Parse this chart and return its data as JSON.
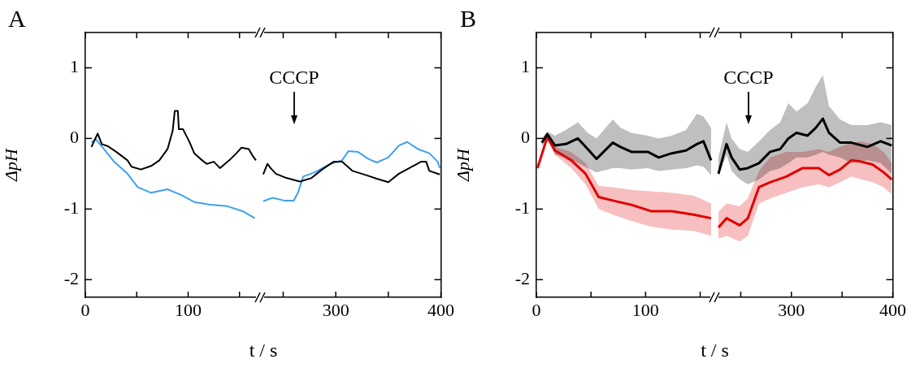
{
  "chart_data": [
    {
      "type": "line",
      "title": "A",
      "ylabel": "ΔpH",
      "xlabel": "t / s",
      "xlim": [
        0,
        170
      ],
      "xticks": [
        0,
        {
          "value": 50,
          "label": null
        },
        100,
        {
          "value": 150,
          "label": null
        }
      ],
      "ylim": [
        -2.25,
        1.5
      ],
      "yticks": [
        -2,
        -1,
        0,
        1
      ],
      "series": [
        {
          "color": "#000000",
          "x": [
            6,
            12,
            16,
            22,
            30,
            41,
            45,
            54,
            64,
            72,
            80,
            85,
            87,
            90,
            91,
            95,
            101,
            106,
            112,
            118,
            125,
            131,
            140,
            147,
            152,
            159,
            163,
            166
          ],
          "values": [
            -0.12,
            0.07,
            -0.08,
            -0.11,
            -0.19,
            -0.31,
            -0.4,
            -0.44,
            -0.39,
            -0.31,
            -0.15,
            0.11,
            0.39,
            0.39,
            0.13,
            0.13,
            -0.04,
            -0.21,
            -0.29,
            -0.36,
            -0.33,
            -0.42,
            -0.31,
            -0.21,
            -0.13,
            -0.15,
            -0.25,
            -0.31
          ]
        },
        {
          "color": "#3fa0f0",
          "x": [
            6,
            10,
            17,
            28,
            41,
            51,
            64,
            80,
            93,
            106,
            122,
            138,
            153,
            165
          ],
          "values": [
            -0.06,
            -0.01,
            -0.13,
            -0.33,
            -0.5,
            -0.69,
            -0.77,
            -0.72,
            -0.8,
            -0.9,
            -0.94,
            -0.96,
            -1.03,
            -1.13
          ]
        }
      ]
    },
    {
      "type": "line",
      "tick_labels": "x",
      "xlim": [
        228,
        400
      ],
      "xticks": [
        {
          "value": 250,
          "label": null
        },
        300,
        {
          "value": 350,
          "label": null
        },
        400
      ],
      "ylim": [
        -2.25,
        1.5
      ],
      "yticks": [
        -2,
        -1,
        0,
        1
      ],
      "annotations": [
        "CCCP"
      ],
      "series": [
        {
          "color": "#000000",
          "x": [
            231,
            235,
            238,
            243,
            253,
            266,
            277,
            287,
            298,
            306,
            316,
            329,
            339,
            350,
            360,
            370,
            381,
            386,
            389,
            399
          ],
          "values": [
            -0.51,
            -0.36,
            -0.42,
            -0.5,
            -0.56,
            -0.61,
            -0.56,
            -0.44,
            -0.33,
            -0.33,
            -0.46,
            -0.52,
            -0.57,
            -0.62,
            -0.5,
            -0.42,
            -0.33,
            -0.33,
            -0.46,
            -0.51
          ]
        },
        {
          "color": "#3fa0f0",
          "x": [
            231,
            240,
            251,
            260,
            264,
            269,
            280,
            295,
            306,
            312,
            321,
            331,
            339,
            350,
            360,
            368,
            378,
            389,
            397,
            399
          ],
          "values": [
            -0.89,
            -0.84,
            -0.88,
            -0.88,
            -0.77,
            -0.54,
            -0.48,
            -0.36,
            -0.31,
            -0.18,
            -0.19,
            -0.29,
            -0.34,
            -0.27,
            -0.1,
            -0.05,
            -0.15,
            -0.21,
            -0.33,
            -0.42
          ]
        }
      ]
    },
    {
      "type": "line",
      "title": "B",
      "ylabel": "ΔpH",
      "xlabel": "t / s",
      "xlim": [
        0,
        163
      ],
      "xticks": [
        0,
        {
          "value": 50,
          "label": null
        },
        100,
        {
          "value": 150,
          "label": null
        }
      ],
      "ylim": [
        -2.25,
        1.5
      ],
      "yticks": [
        -2,
        -1,
        0,
        1
      ],
      "series": [
        {
          "color": "#000000",
          "x": [
            5,
            10,
            17,
            27,
            38,
            47,
            55,
            70,
            77,
            87,
            102,
            112,
            124,
            137,
            147,
            153,
            160
          ],
          "values": [
            -0.06,
            0.06,
            -0.1,
            -0.08,
            0,
            -0.15,
            -0.29,
            -0.06,
            -0.12,
            -0.19,
            -0.19,
            -0.27,
            -0.21,
            -0.17,
            -0.08,
            -0.04,
            -0.31
          ],
          "lower": [
            -0.12,
            0.02,
            -0.23,
            -0.27,
            -0.35,
            -0.42,
            -0.48,
            -0.42,
            -0.42,
            -0.44,
            -0.42,
            -0.46,
            -0.44,
            -0.42,
            -0.38,
            -0.4,
            -0.52
          ],
          "upper": [
            0,
            0.1,
            0.04,
            0.12,
            0.23,
            0.08,
            0,
            0.27,
            0.15,
            0.08,
            0.04,
            0,
            0.04,
            0.12,
            0.35,
            0.31,
            0.15
          ]
        },
        {
          "color": "#e00000",
          "x": [
            1,
            10,
            17,
            32,
            45,
            57,
            70,
            87,
            105,
            124,
            144,
            160
          ],
          "values": [
            -0.42,
            0.02,
            -0.17,
            -0.31,
            -0.5,
            -0.83,
            -0.88,
            -0.94,
            -1.03,
            -1.03,
            -1.08,
            -1.13
          ],
          "lower": [
            -0.46,
            -0.02,
            -0.23,
            -0.42,
            -0.65,
            -1,
            -1.08,
            -1.17,
            -1.25,
            -1.29,
            -1.31,
            -1.38
          ],
          "upper": [
            -0.38,
            0.06,
            -0.12,
            -0.19,
            -0.35,
            -0.67,
            -0.69,
            -0.73,
            -0.75,
            -0.77,
            -0.81,
            -0.92
          ]
        }
      ]
    },
    {
      "type": "line",
      "tick_labels": "x",
      "xlim": [
        224,
        400
      ],
      "xticks": [
        {
          "value": 250,
          "label": null
        },
        300,
        {
          "value": 350,
          "label": null
        },
        400
      ],
      "ylim": [
        -2.25,
        1.5
      ],
      "yticks": [
        -2,
        -1,
        0,
        1
      ],
      "annotations": [
        "CCCP"
      ],
      "series": [
        {
          "color": "#000000",
          "x": [
            228,
            236,
            241,
            249,
            257,
            268,
            279,
            289,
            297,
            305,
            316,
            324,
            331,
            337,
            348,
            359,
            375,
            388,
            399
          ],
          "values": [
            -0.5,
            -0.08,
            -0.27,
            -0.44,
            -0.42,
            -0.35,
            -0.19,
            -0.15,
            0,
            0.08,
            0.04,
            0.15,
            0.28,
            0.08,
            -0.06,
            -0.06,
            -0.12,
            -0.04,
            -0.1
          ],
          "lower": [
            -0.54,
            -0.23,
            -0.46,
            -0.58,
            -0.65,
            -0.58,
            -0.46,
            -0.42,
            -0.35,
            -0.27,
            -0.27,
            -0.23,
            -0.19,
            -0.23,
            -0.27,
            -0.35,
            -0.31,
            -0.35,
            -0.5
          ],
          "upper": [
            -0.27,
            0.23,
            0,
            -0.15,
            -0.19,
            -0.04,
            0.12,
            0.23,
            0.5,
            0.38,
            0.5,
            0.73,
            0.9,
            0.46,
            0.27,
            0.19,
            0.19,
            0.23,
            0.19
          ]
        },
        {
          "color": "#e00000",
          "x": [
            228,
            236,
            249,
            257,
            268,
            279,
            295,
            311,
            327,
            337,
            348,
            359,
            369,
            380,
            391,
            399
          ],
          "values": [
            -1.26,
            -1.13,
            -1.23,
            -1.13,
            -0.69,
            -0.62,
            -0.54,
            -0.42,
            -0.42,
            -0.52,
            -0.44,
            -0.31,
            -0.33,
            -0.37,
            -0.48,
            -0.58
          ],
          "lower": [
            -1.42,
            -1.38,
            -1.46,
            -1.38,
            -0.92,
            -0.85,
            -0.77,
            -0.69,
            -0.65,
            -0.69,
            -0.62,
            -0.54,
            -0.58,
            -0.62,
            -0.69,
            -0.79
          ],
          "upper": [
            -1.04,
            -0.92,
            -0.96,
            -0.85,
            -0.46,
            -0.27,
            -0.19,
            -0.19,
            -0.15,
            -0.19,
            -0.12,
            -0.06,
            -0.04,
            -0.08,
            -0.19,
            -0.35
          ]
        }
      ]
    }
  ]
}
